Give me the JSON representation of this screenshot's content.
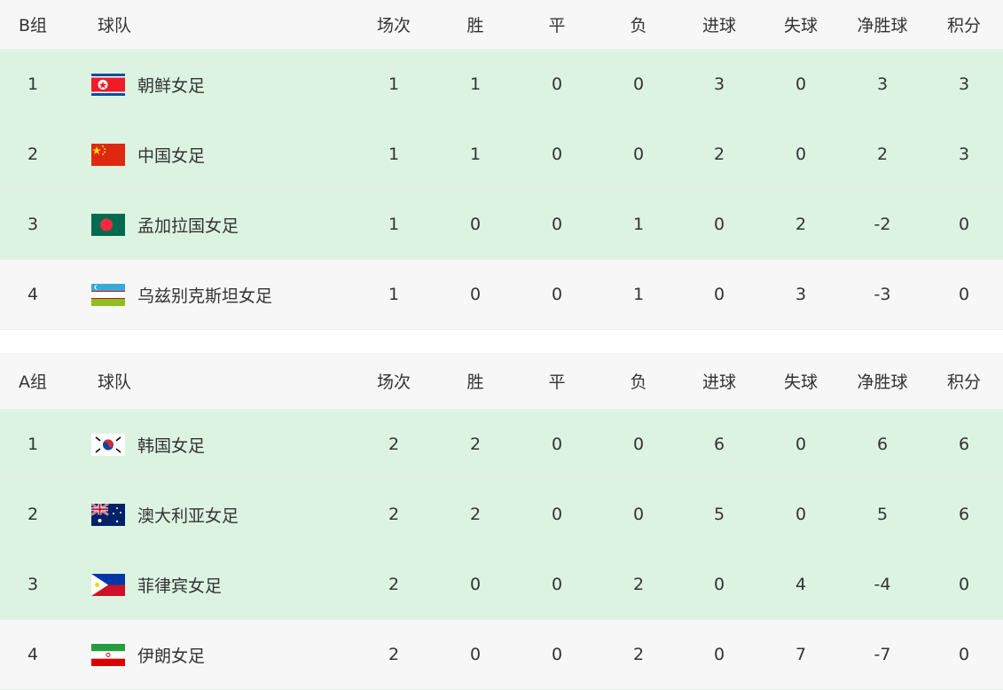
{
  "columns": [
    "场次",
    "胜",
    "平",
    "负",
    "进球",
    "失球",
    "净胜球",
    "积分"
  ],
  "team_header": "球队",
  "groups": [
    {
      "name": "B组",
      "rows": [
        {
          "rank": "1",
          "team": "朝鲜女足",
          "flag": "north-korea-flag",
          "stats": [
            "1",
            "1",
            "0",
            "0",
            "3",
            "0",
            "3",
            "3"
          ]
        },
        {
          "rank": "2",
          "team": "中国女足",
          "flag": "china-flag",
          "stats": [
            "1",
            "1",
            "0",
            "0",
            "2",
            "0",
            "2",
            "3"
          ]
        },
        {
          "rank": "3",
          "team": "孟加拉国女足",
          "flag": "bangladesh-flag",
          "stats": [
            "1",
            "0",
            "0",
            "1",
            "0",
            "2",
            "-2",
            "0"
          ]
        },
        {
          "rank": "4",
          "team": "乌兹别克斯坦女足",
          "flag": "uzbekistan-flag",
          "stats": [
            "1",
            "0",
            "0",
            "1",
            "0",
            "3",
            "-3",
            "0"
          ]
        }
      ]
    },
    {
      "name": "A组",
      "rows": [
        {
          "rank": "1",
          "team": "韩国女足",
          "flag": "south-korea-flag",
          "stats": [
            "2",
            "2",
            "0",
            "0",
            "6",
            "0",
            "6",
            "6"
          ]
        },
        {
          "rank": "2",
          "team": "澳大利亚女足",
          "flag": "australia-flag",
          "stats": [
            "2",
            "2",
            "0",
            "0",
            "5",
            "0",
            "5",
            "6"
          ]
        },
        {
          "rank": "3",
          "team": "菲律宾女足",
          "flag": "philippines-flag",
          "stats": [
            "2",
            "0",
            "0",
            "2",
            "0",
            "4",
            "-4",
            "0"
          ]
        },
        {
          "rank": "4",
          "team": "伊朗女足",
          "flag": "iran-flag",
          "stats": [
            "2",
            "0",
            "0",
            "2",
            "0",
            "7",
            "-7",
            "0"
          ]
        }
      ]
    }
  ],
  "colors": {
    "qualified_row": "#dcf3e1",
    "other_row": "#f7f7f7"
  }
}
